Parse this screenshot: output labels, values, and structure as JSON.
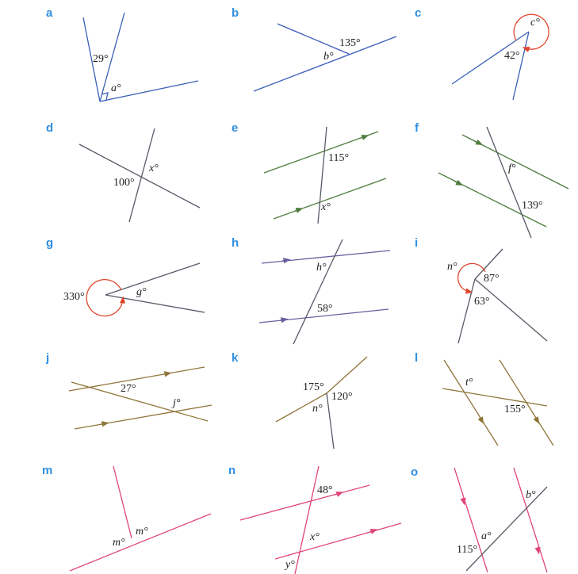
{
  "colors": {
    "label": "#2f8fe0",
    "blue": "#3a5fb8",
    "dark": "#555a66",
    "green": "#4f7d3e",
    "purple": "#6b5e9e",
    "brown": "#8e7438",
    "pink": "#e0457b",
    "red_arc": "#e0452a",
    "text": "#222222"
  },
  "panels": [
    {
      "label": "a",
      "angles": [
        "29°",
        "a°"
      ]
    },
    {
      "label": "b",
      "angles": [
        "135°",
        "b°"
      ]
    },
    {
      "label": "c",
      "angles": [
        "c°",
        "42°"
      ]
    },
    {
      "label": "d",
      "angles": [
        "x°",
        "100°"
      ]
    },
    {
      "label": "e",
      "angles": [
        "115°",
        "x°"
      ]
    },
    {
      "label": "f",
      "angles": [
        "f°",
        "139°"
      ]
    },
    {
      "label": "g",
      "angles": [
        "330°",
        "g°"
      ]
    },
    {
      "label": "h",
      "angles": [
        "h°",
        "58°"
      ]
    },
    {
      "label": "i",
      "angles": [
        "n°",
        "87°",
        "63°"
      ]
    },
    {
      "label": "j",
      "angles": [
        "27°",
        "j°"
      ]
    },
    {
      "label": "k",
      "angles": [
        "175°",
        "120°",
        "n°"
      ]
    },
    {
      "label": "l",
      "angles": [
        "t°",
        "155°"
      ]
    },
    {
      "label": "m",
      "angles": [
        "m°",
        "m°"
      ]
    },
    {
      "label": "n",
      "angles": [
        "48°",
        "x°",
        "y°"
      ]
    },
    {
      "label": "o",
      "angles": [
        "b°",
        "a°",
        "115°"
      ]
    }
  ]
}
